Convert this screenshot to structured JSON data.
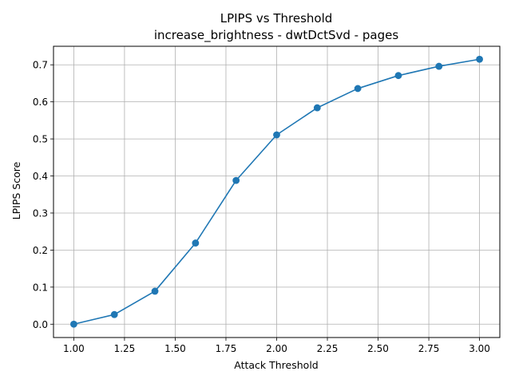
{
  "chart_data": {
    "type": "line",
    "title": "LPIPS vs Threshold",
    "subtitle": "increase_brightness - dwtDctSvd - pages",
    "xlabel": "Attack Threshold",
    "ylabel": "LPIPS Score",
    "xlim": [
      0.9,
      3.1
    ],
    "ylim": [
      -0.036,
      0.75
    ],
    "grid": true,
    "marker": "circle",
    "xticks": [
      1.0,
      1.25,
      1.5,
      1.75,
      2.0,
      2.25,
      2.5,
      2.75,
      3.0
    ],
    "xtick_labels": [
      "1.00",
      "1.25",
      "1.50",
      "1.75",
      "2.00",
      "2.25",
      "2.50",
      "2.75",
      "3.00"
    ],
    "yticks": [
      0.0,
      0.1,
      0.2,
      0.3,
      0.4,
      0.5,
      0.6,
      0.7
    ],
    "ytick_labels": [
      "0.0",
      "0.1",
      "0.2",
      "0.3",
      "0.4",
      "0.5",
      "0.6",
      "0.7"
    ],
    "series": [
      {
        "color": "#1f77b4",
        "x": [
          1.0,
          1.2,
          1.4,
          1.6,
          1.8,
          2.0,
          2.2,
          2.4,
          2.6,
          2.8,
          3.0
        ],
        "y": [
          0.0,
          0.026,
          0.089,
          0.219,
          0.388,
          0.511,
          0.584,
          0.636,
          0.671,
          0.696,
          0.715
        ]
      }
    ]
  }
}
